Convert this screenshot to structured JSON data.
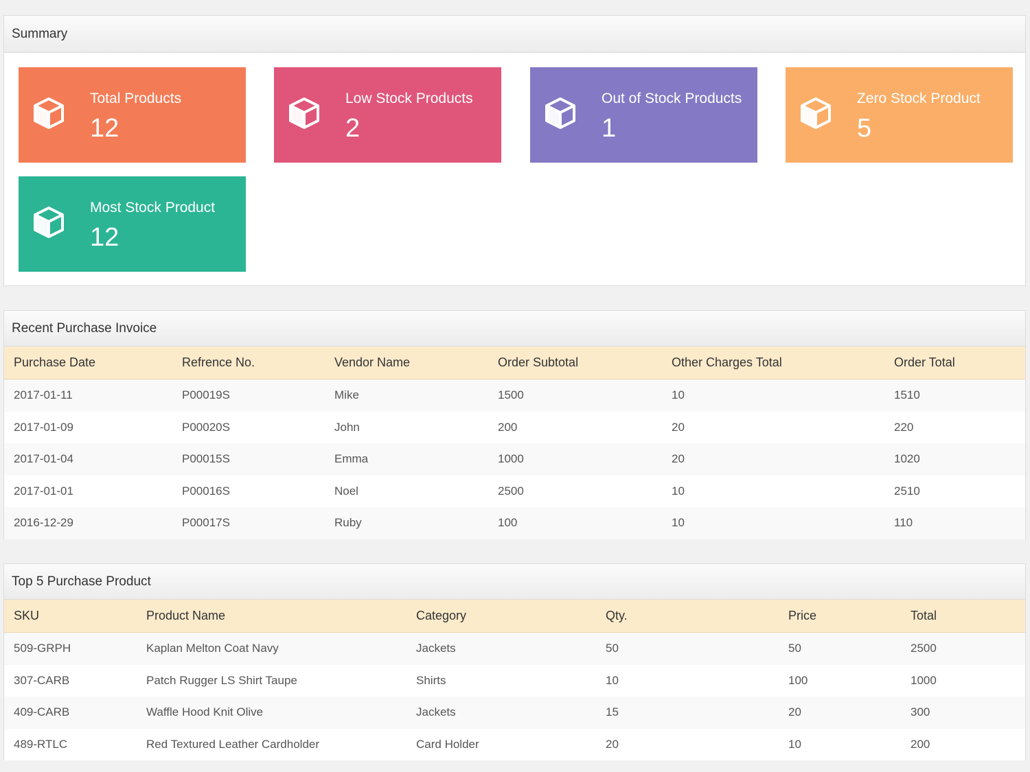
{
  "summary": {
    "title": "Summary",
    "cards": [
      {
        "label": "Total Products",
        "value": "12",
        "color": "#f37c56",
        "icon": "cube-icon"
      },
      {
        "label": "Low Stock Products",
        "value": "2",
        "color": "#e0557a",
        "icon": "cube-icon"
      },
      {
        "label": "Out of Stock Products",
        "value": "1",
        "color": "#8479c4",
        "icon": "cube-icon"
      },
      {
        "label": "Zero Stock Product",
        "value": "5",
        "color": "#fbae67",
        "icon": "cube-icon"
      },
      {
        "label": "Most Stock Product",
        "value": "12",
        "color": "#2bb594",
        "icon": "cube-icon"
      }
    ]
  },
  "invoice": {
    "title": "Recent Purchase Invoice",
    "columns": [
      "Purchase Date",
      "Refrence No.",
      "Vendor Name",
      "Order Subtotal",
      "Other Charges Total",
      "Order Total"
    ],
    "rows": [
      [
        "2017-01-11",
        "P00019S",
        "Mike",
        "1500",
        "10",
        "1510"
      ],
      [
        "2017-01-09",
        "P00020S",
        "John",
        "200",
        "20",
        "220"
      ],
      [
        "2017-01-04",
        "P00015S",
        "Emma",
        "1000",
        "20",
        "1020"
      ],
      [
        "2017-01-01",
        "P00016S",
        "Noel",
        "2500",
        "10",
        "2510"
      ],
      [
        "2016-12-29",
        "P00017S",
        "Ruby",
        "100",
        "10",
        "110"
      ]
    ]
  },
  "top5": {
    "title": "Top 5 Purchase Product",
    "columns": [
      "SKU",
      "Product Name",
      "Category",
      "Qty.",
      "Price",
      "Total"
    ],
    "rows": [
      [
        "509-GRPH",
        "Kaplan Melton Coat Navy",
        "Jackets",
        "50",
        "50",
        "2500"
      ],
      [
        "307-CARB",
        "Patch Rugger LS Shirt Taupe",
        "Shirts",
        "10",
        "100",
        "1000"
      ],
      [
        "409-CARB",
        "Waffle Hood Knit Olive",
        "Jackets",
        "15",
        "20",
        "300"
      ],
      [
        "489-RTLC",
        "Red Textured Leather Cardholder",
        "Card Holder",
        "20",
        "10",
        "200"
      ]
    ]
  }
}
